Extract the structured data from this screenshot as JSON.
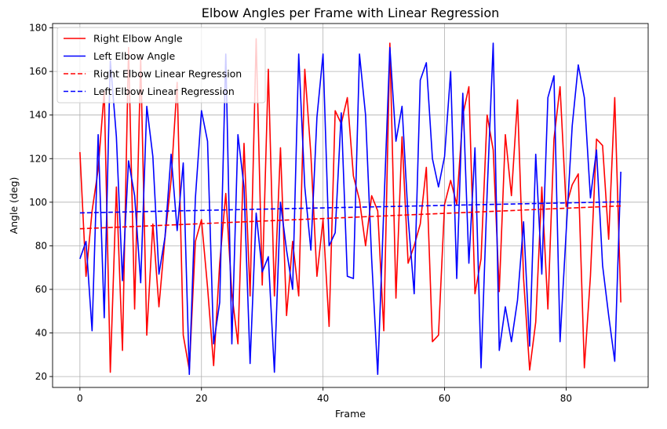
{
  "chart_data": {
    "type": "line",
    "title": "Elbow Angles per Frame with Linear Regression",
    "xlabel": "Frame",
    "ylabel": "Angle (deg)",
    "xlim": [
      -4.5,
      93.5
    ],
    "ylim": [
      15,
      182
    ],
    "xticks": [
      0,
      20,
      40,
      60,
      80
    ],
    "yticks": [
      20,
      40,
      60,
      80,
      100,
      120,
      140,
      160,
      180
    ],
    "grid": true,
    "legend_position": "top-left",
    "series": [
      {
        "name": "Right Elbow Angle",
        "color": "#ff0000",
        "dash": "solid",
        "x": [
          0,
          1,
          2,
          3,
          4,
          5,
          6,
          7,
          8,
          9,
          10,
          11,
          12,
          13,
          14,
          15,
          16,
          17,
          18,
          19,
          20,
          21,
          22,
          23,
          24,
          25,
          26,
          27,
          28,
          29,
          30,
          31,
          32,
          33,
          34,
          35,
          36,
          37,
          38,
          39,
          40,
          41,
          42,
          43,
          44,
          45,
          46,
          47,
          48,
          49,
          50,
          51,
          52,
          53,
          54,
          55,
          56,
          57,
          58,
          59,
          60,
          61,
          62,
          63,
          64,
          65,
          66,
          67,
          68,
          69,
          70,
          71,
          72,
          73,
          74,
          75,
          76,
          77,
          78,
          79,
          80,
          81,
          82,
          83,
          84,
          85,
          86,
          87,
          88,
          89
        ],
        "values": [
          123,
          66,
          96,
          115,
          151,
          22,
          107,
          32,
          171,
          51,
          166,
          39,
          90,
          52,
          84,
          110,
          155,
          39,
          23,
          82,
          92,
          61,
          25,
          72,
          104,
          58,
          35,
          127,
          57,
          175,
          62,
          161,
          57,
          125,
          48,
          82,
          57,
          161,
          122,
          66,
          92,
          43,
          142,
          136,
          148,
          112,
          101,
          80,
          103,
          96,
          41,
          173,
          56,
          130,
          72,
          80,
          90,
          116,
          36,
          39,
          99,
          110,
          99,
          140,
          153,
          58,
          74,
          140,
          124,
          59,
          131,
          103,
          147,
          65,
          23,
          45,
          107,
          51,
          129,
          153,
          98,
          108,
          113,
          24,
          66,
          129,
          126,
          83,
          148,
          54
        ]
      },
      {
        "name": "Left Elbow Angle",
        "color": "#0000ff",
        "dash": "solid",
        "x": [
          0,
          1,
          2,
          3,
          4,
          5,
          6,
          7,
          8,
          9,
          10,
          11,
          12,
          13,
          14,
          15,
          16,
          17,
          18,
          19,
          20,
          21,
          22,
          23,
          24,
          25,
          26,
          27,
          28,
          29,
          30,
          31,
          32,
          33,
          34,
          35,
          36,
          37,
          38,
          39,
          40,
          41,
          42,
          43,
          44,
          45,
          46,
          47,
          48,
          49,
          50,
          51,
          52,
          53,
          54,
          55,
          56,
          57,
          58,
          59,
          60,
          61,
          62,
          63,
          64,
          65,
          66,
          67,
          68,
          69,
          70,
          71,
          72,
          73,
          74,
          75,
          76,
          77,
          78,
          79,
          80,
          81,
          82,
          83,
          84,
          85,
          86,
          87,
          88,
          89
        ],
        "values": [
          74,
          82,
          41,
          131,
          47,
          165,
          130,
          64,
          119,
          103,
          63,
          144,
          121,
          67,
          84,
          122,
          87,
          118,
          21,
          102,
          142,
          128,
          35,
          54,
          168,
          35,
          131,
          107,
          26,
          95,
          68,
          75,
          22,
          100,
          78,
          60,
          168,
          107,
          78,
          139,
          168,
          80,
          86,
          141,
          66,
          65,
          168,
          140,
          74,
          21,
          97,
          171,
          128,
          144,
          93,
          58,
          156,
          164,
          120,
          107,
          121,
          160,
          65,
          150,
          72,
          125,
          24,
          104,
          173,
          32,
          52,
          36,
          55,
          91,
          34,
          122,
          67,
          148,
          158,
          36,
          86,
          135,
          163,
          148,
          102,
          124,
          71,
          48,
          27,
          114
        ]
      },
      {
        "name": "Right Elbow Linear Regression",
        "color": "#ff0000",
        "dash": "dashed",
        "x": [
          0,
          89
        ],
        "values": [
          87.8,
          98.3
        ]
      },
      {
        "name": "Left Elbow Linear Regression",
        "color": "#0000ff",
        "dash": "dashed",
        "x": [
          0,
          89
        ],
        "values": [
          95.1,
          100.2
        ]
      }
    ]
  }
}
